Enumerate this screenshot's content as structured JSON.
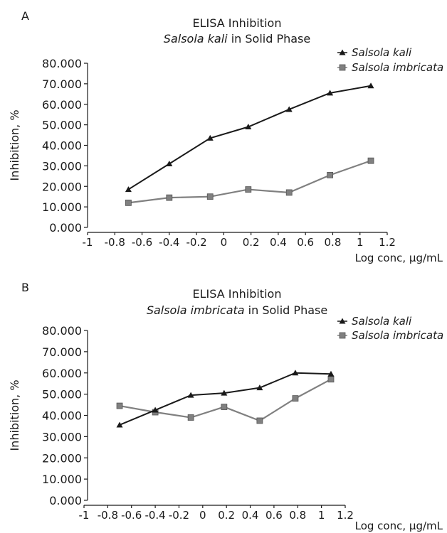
{
  "chart_data": [
    {
      "panel": "A",
      "type": "line",
      "title_line1": "ELISA Inhibition",
      "title_italic": "Salsola kali",
      "title_rest": " in Solid Phase",
      "ylabel": "Inhibition, %",
      "xlabel": "Log conc, μg/mL",
      "xlim": [
        -1,
        1.2
      ],
      "ylim": [
        0,
        80
      ],
      "x_ticks": [
        "-1",
        "-0.8",
        "-0.6",
        "-0.4",
        "-0.2",
        "0",
        "0.2",
        "0.4",
        "0.6",
        "0.8",
        "1",
        "1.2"
      ],
      "y_ticks": [
        "0.000",
        "10.000",
        "20.000",
        "30.000",
        "40.000",
        "50.000",
        "60.000",
        "70.000",
        "80.000"
      ],
      "legend_position": "top-right",
      "series": [
        {
          "name": "Salsola kali",
          "marker": "triangle",
          "color": "#1a1a1a",
          "x": [
            -0.7,
            -0.4,
            -0.1,
            0.18,
            0.48,
            0.78,
            1.08
          ],
          "y": [
            18.5,
            31,
            43.5,
            49,
            57.5,
            65.5,
            69
          ]
        },
        {
          "name": "Salsola imbricata",
          "marker": "square",
          "color": "#808080",
          "x": [
            -0.7,
            -0.4,
            -0.1,
            0.18,
            0.48,
            0.78,
            1.08
          ],
          "y": [
            12,
            14.5,
            15,
            18.5,
            17,
            25.5,
            32.5
          ]
        }
      ]
    },
    {
      "panel": "B",
      "type": "line",
      "title_line1": "ELISA Inhibition",
      "title_italic": "Salsola imbricata",
      "title_rest": " in Solid Phase",
      "ylabel": "Inhibition, %",
      "xlabel": "Log conc, μg/mL",
      "xlim": [
        -1,
        1.2
      ],
      "ylim": [
        0,
        80
      ],
      "x_ticks": [
        "-1",
        "-0.8",
        "-0.6",
        "-0.4",
        "-0.2",
        "0",
        "0.2",
        "0.4",
        "0.6",
        "0.8",
        "1",
        "1.2"
      ],
      "y_ticks": [
        "0.000",
        "10.000",
        "20.000",
        "30.000",
        "40.000",
        "50.000",
        "60.000",
        "70.000",
        "80.000"
      ],
      "legend_position": "top-right",
      "series": [
        {
          "name": "Salsola kali",
          "marker": "triangle",
          "color": "#1a1a1a",
          "x": [
            -0.7,
            -0.4,
            -0.1,
            0.18,
            0.48,
            0.78,
            1.08
          ],
          "y": [
            35.5,
            42.5,
            49.5,
            50.5,
            53,
            60,
            59.5
          ]
        },
        {
          "name": "Salsola imbricata",
          "marker": "square",
          "color": "#808080",
          "x": [
            -0.7,
            -0.4,
            -0.1,
            0.18,
            0.48,
            0.78,
            1.08
          ],
          "y": [
            44.5,
            41.5,
            39,
            44,
            37.5,
            48,
            57
          ]
        }
      ]
    }
  ]
}
